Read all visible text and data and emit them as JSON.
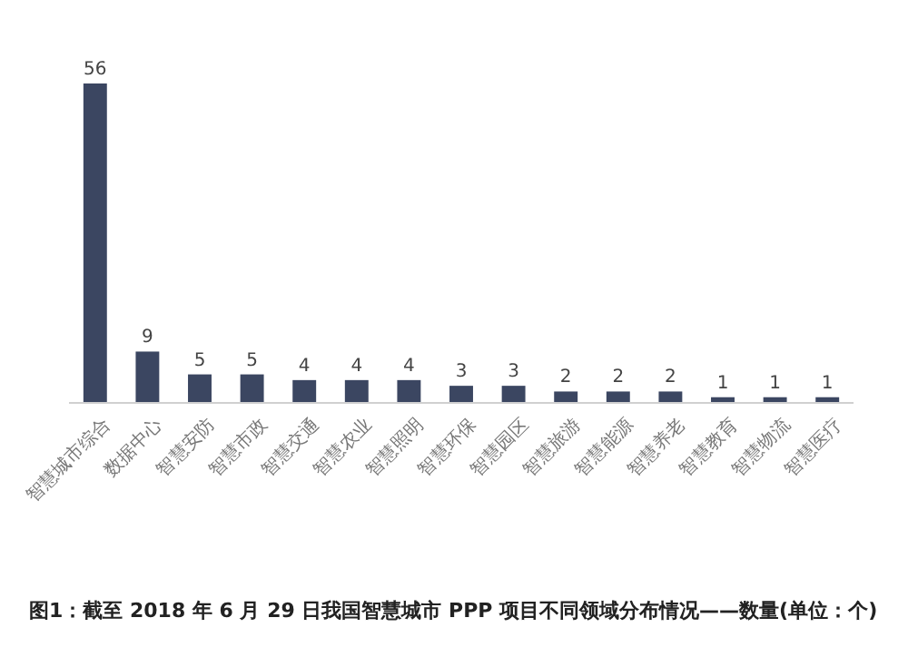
{
  "chart_data": {
    "type": "bar",
    "categories": [
      "智慧城市综合",
      "数据中心",
      "智慧安防",
      "智慧市政",
      "智慧交通",
      "智慧农业",
      "智慧照明",
      "智慧环保",
      "智慧园区",
      "智慧旅游",
      "智慧能源",
      "智慧养老",
      "智慧教育",
      "智慧物流",
      "智慧医疗"
    ],
    "values": [
      56,
      9,
      5,
      5,
      4,
      4,
      4,
      3,
      3,
      2,
      2,
      2,
      1,
      1,
      1
    ],
    "color": "#3b4661",
    "data_labels": true,
    "tick_labels": "x",
    "annotations": [
      "图1：截至 2018 年 6 月 29 日我国智慧城市 PPP 项目不同领域分布情况——数量(单位：个)"
    ]
  }
}
